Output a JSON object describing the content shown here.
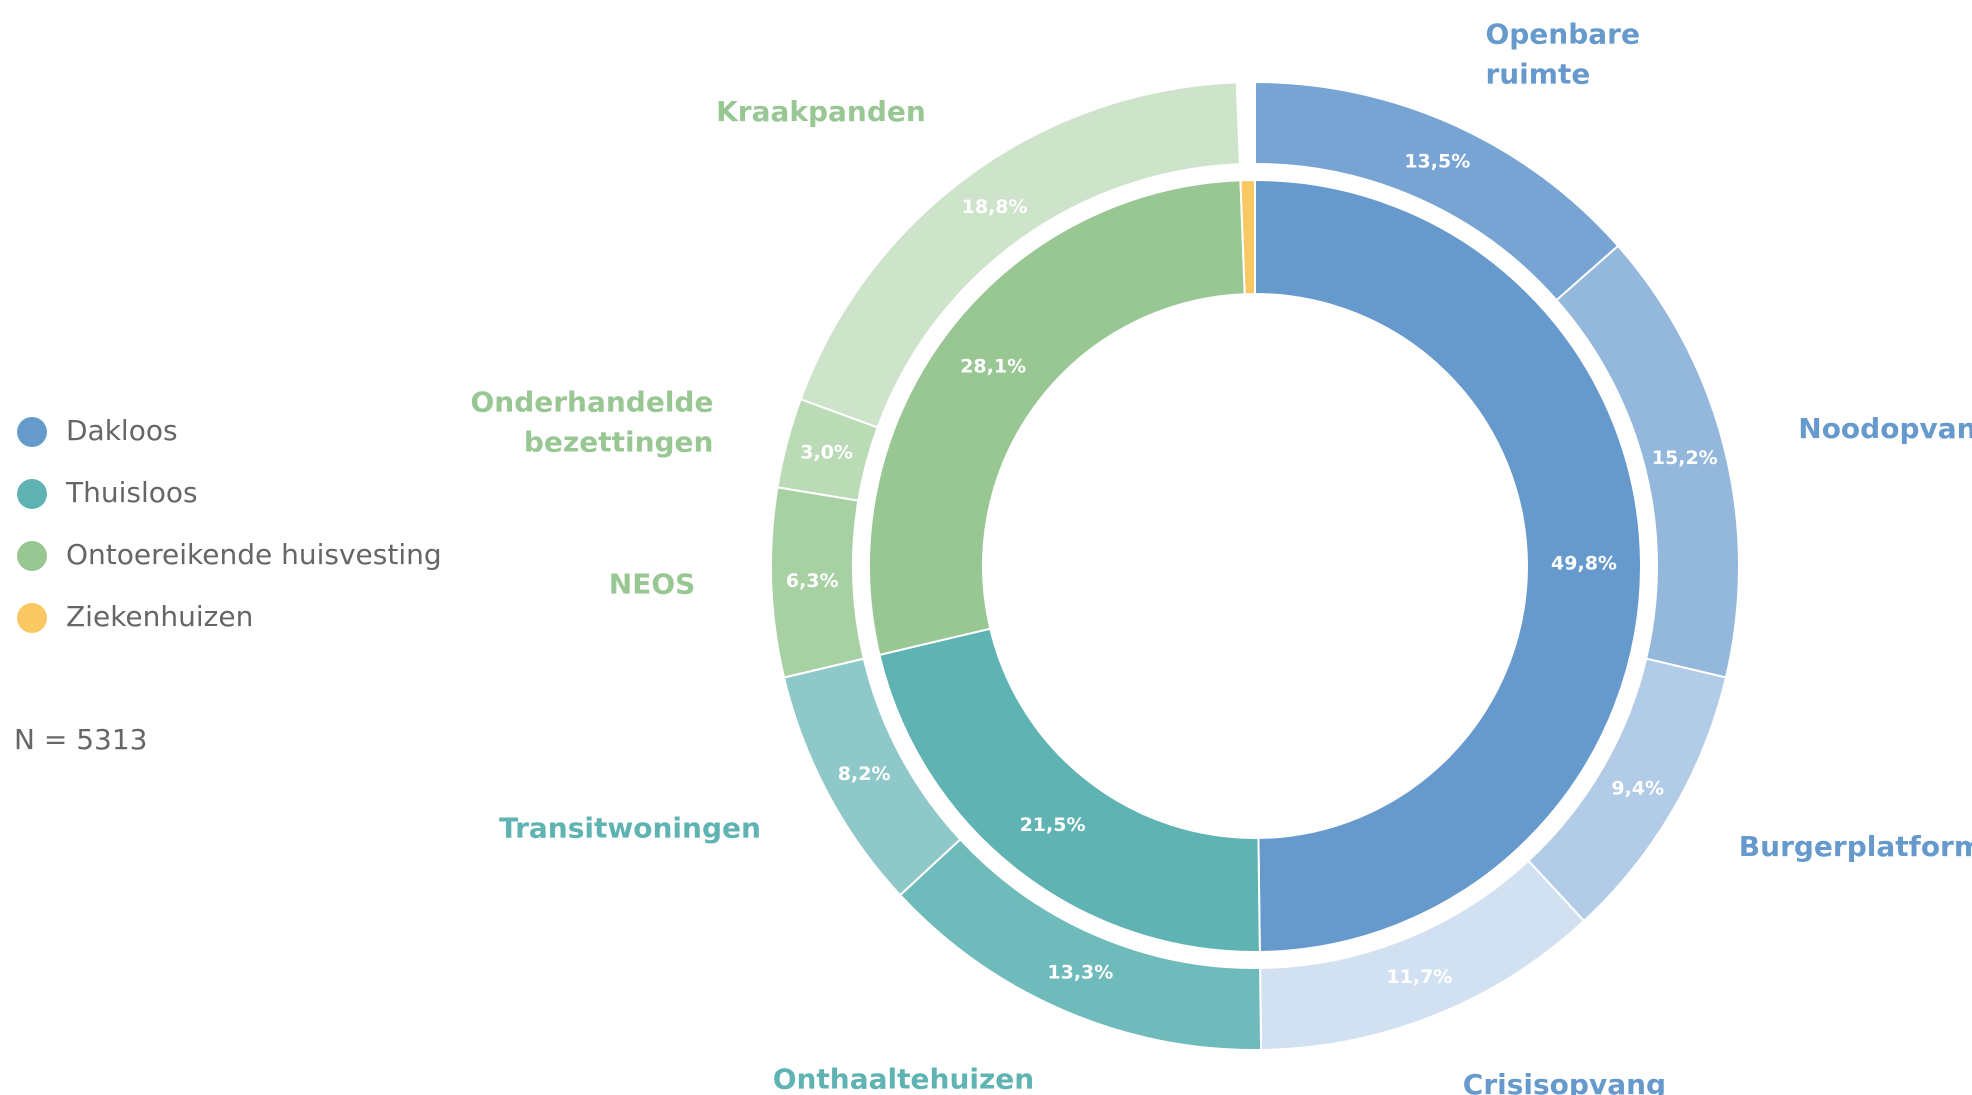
{
  "chart_data": {
    "type": "sunburst",
    "legend": "left",
    "note": "N = 5313",
    "inner": {
      "categories": [
        "Dakloos",
        "Thuisloos",
        "Ontoereikende huisvesting",
        "Ziekenhuizen"
      ],
      "values": [
        49.8,
        21.5,
        28.1,
        0.6
      ],
      "value_labels": [
        "49,8%",
        "21,5%",
        "28,1%",
        null
      ],
      "colors": [
        "#6699cc",
        "#5fb3b3",
        "#99c794",
        "#f9c863"
      ]
    },
    "outer": {
      "categories": [
        "Openbare ruimte",
        "Noodopvang",
        "Burgerplatform",
        "Crisisopvang",
        "Onthaaltehuizen",
        "Transitwoningen",
        "NEOS",
        "Onderhandelde bezettingen",
        "Kraakpanden"
      ],
      "values": [
        13.5,
        15.2,
        9.4,
        11.7,
        13.3,
        8.2,
        6.3,
        3.0,
        18.8
      ],
      "value_labels": [
        "13,5%",
        "15,2%",
        "9,4%",
        "11,7%",
        "13,3%",
        "8,2%",
        "6,3%",
        "3,0%",
        "18,8%"
      ],
      "parent": [
        0,
        0,
        0,
        0,
        1,
        1,
        2,
        2,
        2
      ],
      "colors": [
        "#77a4d3",
        "#94b7dc",
        "#b2cbe6",
        "#d2e1f1",
        "#6fbaba",
        "#8fc8c8",
        "#a7d1a2",
        "#badbb6",
        "#cde3ca"
      ]
    }
  }
}
